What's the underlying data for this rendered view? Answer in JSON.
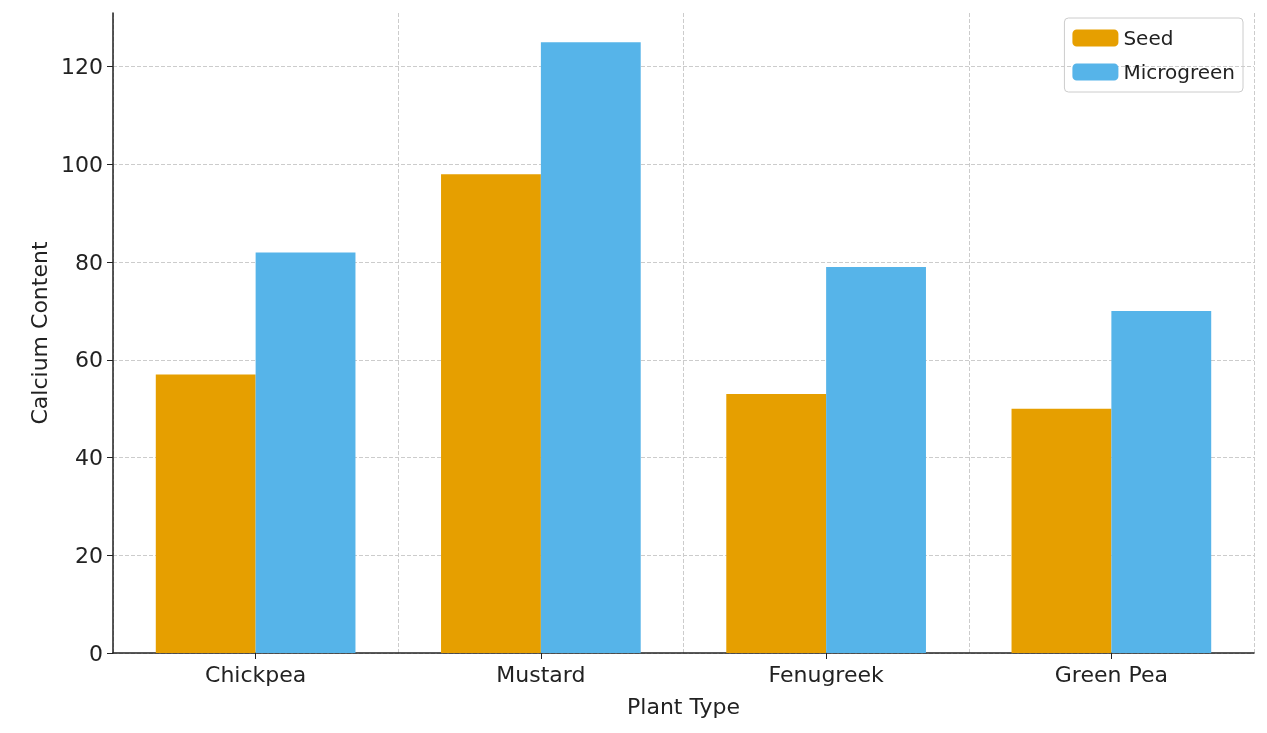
{
  "chart_data": {
    "type": "bar",
    "xlabel": "Plant Type",
    "ylabel": "Calcium Content",
    "categories": [
      "Chickpea",
      "Mustard",
      "Fenugreek",
      "Green Pea"
    ],
    "series": [
      {
        "name": "Seed",
        "color": "#e69f00",
        "values": [
          57,
          98,
          53,
          50
        ]
      },
      {
        "name": "Microgreen",
        "color": "#56b4e9",
        "values": [
          82,
          125,
          79,
          70
        ]
      }
    ],
    "ylim": [
      0,
      131
    ],
    "yticks": [
      0,
      20,
      40,
      60,
      80,
      100,
      120
    ],
    "grid": true,
    "legend": "top right"
  }
}
